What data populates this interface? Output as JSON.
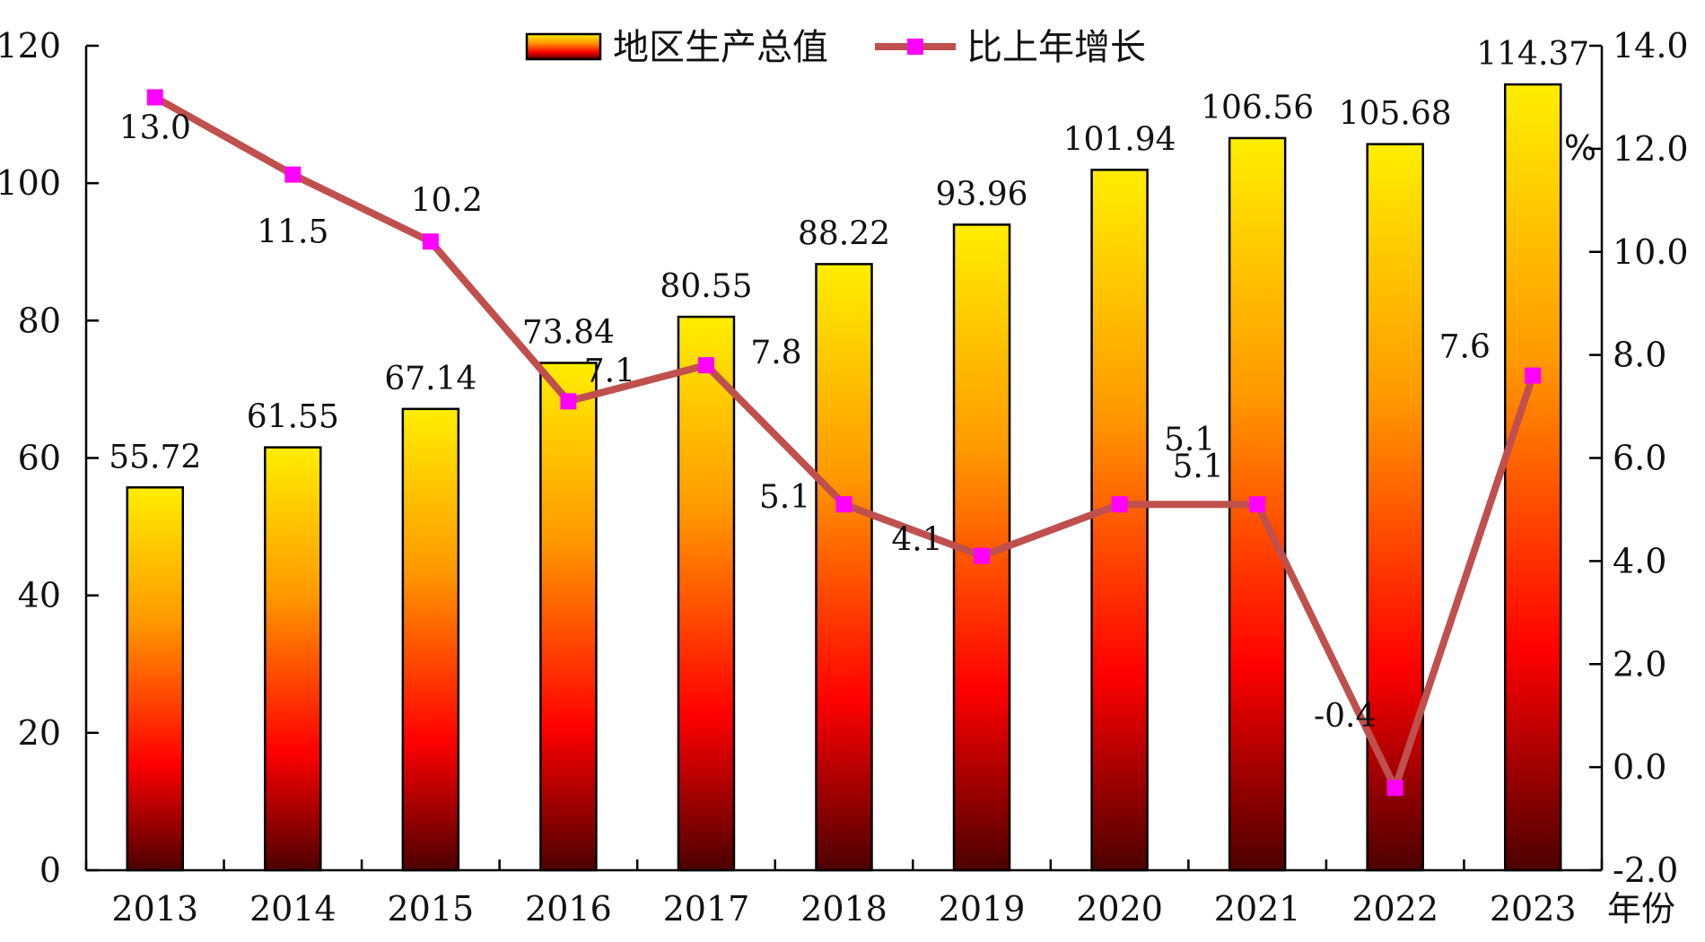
{
  "chart_data": {
    "type": "bar",
    "categories": [
      "2013",
      "2014",
      "2015",
      "2016",
      "2017",
      "2018",
      "2019",
      "2020",
      "2021",
      "2022",
      "2023"
    ],
    "series": [
      {
        "name": "地区生产总值",
        "type": "bar",
        "axis": "left",
        "values": [
          55.72,
          61.55,
          67.14,
          73.84,
          80.55,
          88.22,
          93.96,
          101.94,
          106.56,
          105.68,
          114.37
        ],
        "labels": [
          "55.72",
          "61.55",
          "67.14",
          "73.84",
          "80.55",
          "88.22",
          "93.96",
          "101.94",
          "106.56",
          "105.68",
          "114.37"
        ]
      },
      {
        "name": "比上年增长",
        "type": "line",
        "axis": "right",
        "values": [
          13.0,
          11.5,
          10.2,
          7.1,
          7.8,
          5.1,
          4.1,
          5.1,
          5.1,
          -0.4,
          7.6
        ],
        "labels": [
          "13.0",
          "11.5",
          "10.2",
          "7.1",
          "7.8",
          "5.1",
          "4.1",
          "5.1",
          "5.1",
          "-0.4",
          "7.6"
        ]
      }
    ],
    "ylim_left": [
      0,
      120
    ],
    "yticks_left": [
      "0",
      "20",
      "40",
      "60",
      "80",
      "100",
      "120"
    ],
    "ylim_right": [
      -2,
      14
    ],
    "yticks_right": [
      "-2.0",
      "0.0",
      "2.0",
      "4.0",
      "6.0",
      "8.0",
      "10.0",
      "12.0",
      "14.0"
    ],
    "xlabel": "年份",
    "ylabel_right": "%",
    "legend": "top-center",
    "grid": false,
    "colors": {
      "bar_top": "#ffee00",
      "bar_mid1": "#ff9900",
      "bar_mid2": "#ff0000",
      "bar_bottom": "#4d0000",
      "line": "#c0504d",
      "marker": "#ff00ff"
    }
  }
}
